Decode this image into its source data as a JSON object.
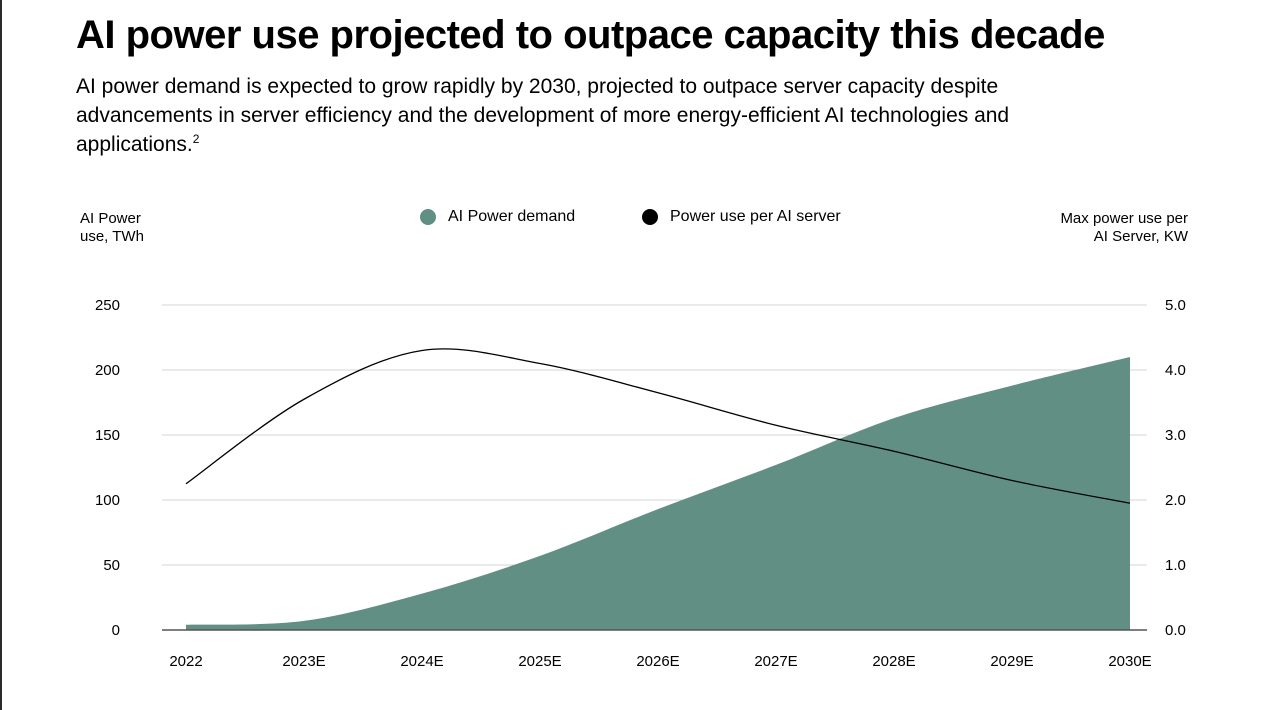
{
  "title": "AI power use projected to outpace capacity this decade",
  "subtitle": "AI power demand is expected to grow rapidly by 2030, projected to outpace server capacity despite advancements in server efficiency and the development of more energy-efficient AI technologies and applications.",
  "footnote_marker": "2",
  "colors": {
    "area": "#628F83",
    "line": "#000000",
    "grid": "#d4d4d4",
    "baseline": "#555555"
  },
  "chart_data": {
    "type": "area",
    "categories": [
      "2022",
      "2023E",
      "2024E",
      "2025E",
      "2026E",
      "2027E",
      "2028E",
      "2029E",
      "2030E"
    ],
    "series": [
      {
        "name": "AI Power demand",
        "axis": "left",
        "style": "area",
        "marker": "legend-dot-teal",
        "values": [
          4,
          7,
          28,
          57,
          93,
          127,
          163,
          188,
          210
        ]
      },
      {
        "name": "Power use per AI server",
        "axis": "right",
        "style": "line",
        "marker": "legend-dot-black",
        "values": [
          2.25,
          3.55,
          4.3,
          4.1,
          3.65,
          3.15,
          2.75,
          2.3,
          1.95
        ]
      }
    ],
    "left_axis": {
      "label_line1": "AI Power",
      "label_line2": "use, TWh",
      "ylim": [
        0,
        250
      ],
      "ticks": [
        "0",
        "50",
        "100",
        "150",
        "200",
        "250"
      ]
    },
    "right_axis": {
      "label_line1": "Max power use per",
      "label_line2": "AI Server, KW",
      "ylim": [
        0,
        5
      ],
      "ticks": [
        "0.0",
        "1.0",
        "2.0",
        "3.0",
        "4.0",
        "5.0"
      ]
    },
    "legend_position": "top-center",
    "grid": true
  }
}
